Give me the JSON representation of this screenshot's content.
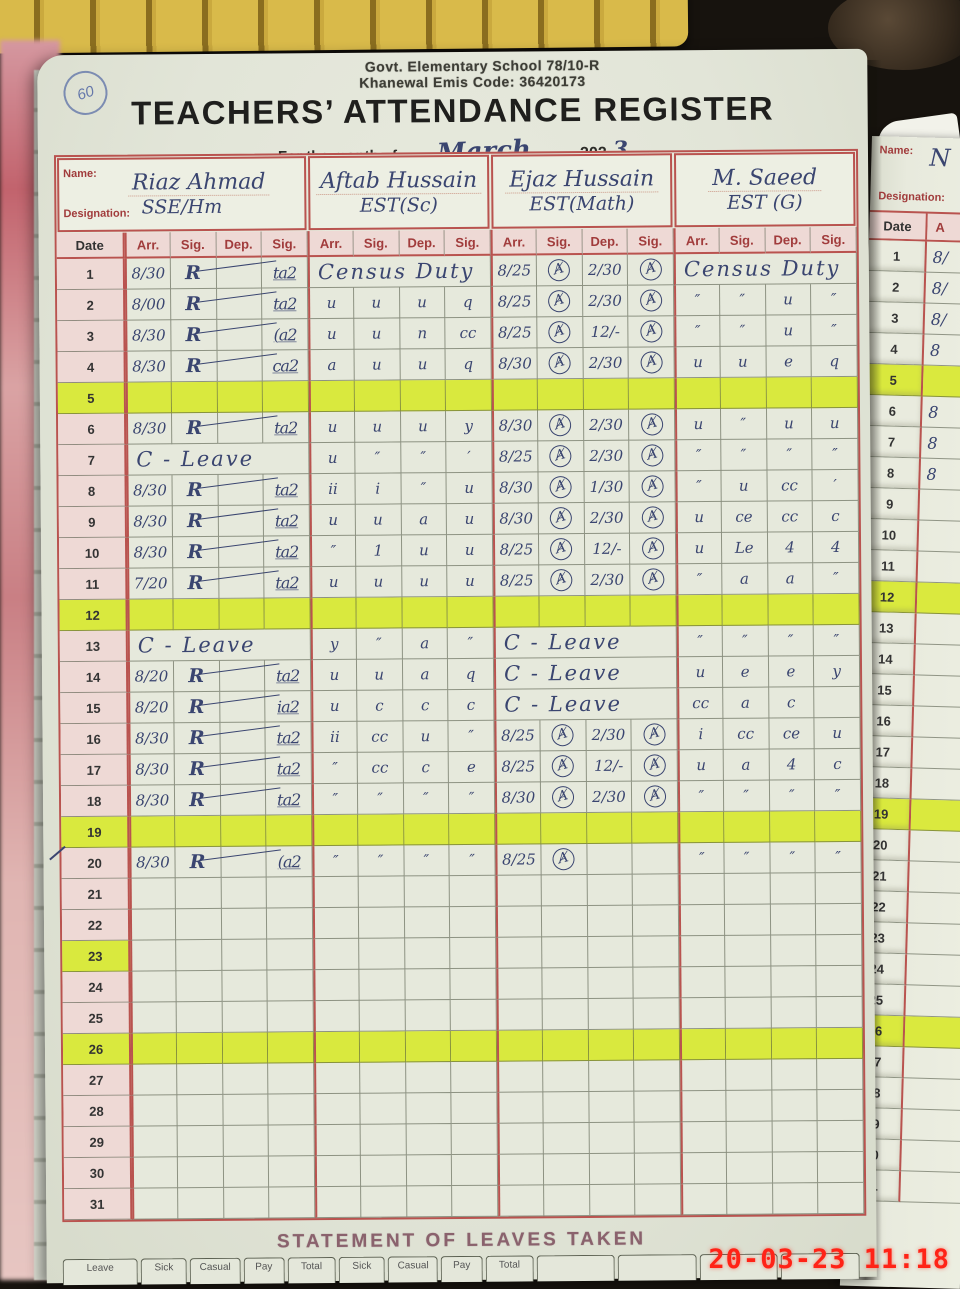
{
  "photo": {
    "timestamp": "20-03-23 11:18"
  },
  "page": {
    "stamp": "60",
    "school_line1": "Govt. Elementary School 78/10-R",
    "school_line2": "Khanewal Emis Code: 36420173",
    "title": "TEACHERS’ ATTENDANCE REGISTER",
    "month_prefix": "For the month of",
    "month_value": "March",
    "year_suffix": ", 202",
    "year_hand": "3",
    "name_label": "Name:",
    "designation_label": "Designation:",
    "footer_title": "STATEMENT OF LEAVES TAKEN",
    "leaves_cols": [
      "Leave",
      "Sick",
      "Casual",
      "Pay",
      "Total",
      "Sick",
      "Casual",
      "Pay",
      "Total",
      "",
      "",
      "",
      ""
    ]
  },
  "columns": {
    "date": "Date",
    "sub": [
      "Arr.",
      "Sig.",
      "Dep.",
      "Sig."
    ]
  },
  "teachers": [
    {
      "name": "Riaz Ahmad",
      "designation": "SSE/Hm"
    },
    {
      "name": "Aftab Hussain",
      "designation": "EST(Sc)"
    },
    {
      "name": "Ejaz Hussain",
      "designation": "EST(Math)"
    },
    {
      "name": "M. Saeed",
      "designation": "EST (G)"
    }
  ],
  "rows": [
    {
      "d": 1,
      "t1": [
        "8/30",
        "R",
        "",
        "ta2"
      ],
      "t2": "Census Duty",
      "t3": [
        "8/25",
        "Ⱥ",
        "2/30",
        "Ⱥ"
      ],
      "t4": "Census Duty"
    },
    {
      "d": 2,
      "t1": [
        "8/00",
        "R",
        "",
        "ta2"
      ],
      "t2": [
        "u",
        "u",
        "u",
        "q"
      ],
      "t3": [
        "8/25",
        "Ⱥ",
        "2/30",
        "Ⱥ"
      ],
      "t4": [
        "″",
        "″",
        "u",
        "″"
      ]
    },
    {
      "d": 3,
      "t1": [
        "8/30",
        "R",
        "",
        "(a2"
      ],
      "t2": [
        "u",
        "u",
        "n",
        "cc"
      ],
      "t3": [
        "8/25",
        "Ⱥ",
        "12/-",
        "Ⱥ"
      ],
      "t4": [
        "″",
        "″",
        "u",
        "″"
      ]
    },
    {
      "d": 4,
      "t1": [
        "8/30",
        "R",
        "",
        "ca2"
      ],
      "t2": [
        "a",
        "u",
        "u",
        "q"
      ],
      "t3": [
        "8/30",
        "Ⱥ",
        "2/30",
        "Ⱥ"
      ],
      "t4": [
        "u",
        "u",
        "e",
        "q"
      ]
    },
    {
      "d": 5,
      "hl": true
    },
    {
      "d": 6,
      "t1": [
        "8/30",
        "R",
        "",
        "ta2"
      ],
      "t2": [
        "u",
        "u",
        "u",
        "y"
      ],
      "t3": [
        "8/30",
        "Ⱥ",
        "2/30",
        "Ⱥ"
      ],
      "t4": [
        "u",
        "″",
        "u",
        "u"
      ]
    },
    {
      "d": 7,
      "t1": "C - Leave",
      "t2": [
        "u",
        "″",
        "″",
        "′"
      ],
      "t3": [
        "8/25",
        "Ⱥ",
        "2/30",
        "Ⱥ"
      ],
      "t4": [
        "″",
        "″",
        "″",
        "″"
      ]
    },
    {
      "d": 8,
      "t1": [
        "8/30",
        "R",
        "",
        "ta2"
      ],
      "t2": [
        "ii",
        "i",
        "″",
        "u"
      ],
      "t3": [
        "8/30",
        "Ⱥ",
        "1/30",
        "Ⱥ"
      ],
      "t4": [
        "″",
        "u",
        "cc",
        "′"
      ]
    },
    {
      "d": 9,
      "t1": [
        "8/30",
        "R",
        "",
        "ta2"
      ],
      "t2": [
        "u",
        "u",
        "a",
        "u"
      ],
      "t3": [
        "8/30",
        "Ⱥ",
        "2/30",
        "Ⱥ"
      ],
      "t4": [
        "u",
        "ce",
        "cc",
        "c"
      ]
    },
    {
      "d": 10,
      "t1": [
        "8/30",
        "R",
        "",
        "ta2"
      ],
      "t2": [
        "″",
        "1",
        "u",
        "u"
      ],
      "t3": [
        "8/25",
        "Ⱥ",
        "12/-",
        "Ⱥ"
      ],
      "t4": [
        "u",
        "Le",
        "4",
        "4"
      ]
    },
    {
      "d": 11,
      "t1": [
        "7/20",
        "R",
        "",
        "ta2"
      ],
      "t2": [
        "u",
        "u",
        "u",
        "u"
      ],
      "t3": [
        "8/25",
        "Ⱥ",
        "2/30",
        "Ⱥ"
      ],
      "t4": [
        "″",
        "a",
        "a",
        "″"
      ]
    },
    {
      "d": 12,
      "hl": true
    },
    {
      "d": 13,
      "t1": "C - Leave",
      "t2": [
        "y",
        "″",
        "a",
        "″"
      ],
      "t3": "C - Leave",
      "t4": [
        "″",
        "″",
        "″",
        "″"
      ]
    },
    {
      "d": 14,
      "t1": [
        "8/20",
        "R",
        "",
        "ta2"
      ],
      "t2": [
        "u",
        "u",
        "a",
        "q"
      ],
      "t3": "C - Leave",
      "t4": [
        "u",
        "e",
        "e",
        "y"
      ]
    },
    {
      "d": 15,
      "t1": [
        "8/20",
        "R",
        "",
        "ia2"
      ],
      "t2": [
        "u",
        "c",
        "c",
        "c"
      ],
      "t3": "C - Leave",
      "t4": [
        "cc",
        "a",
        "c",
        ""
      ]
    },
    {
      "d": 16,
      "t1": [
        "8/30",
        "R",
        "",
        "ta2"
      ],
      "t2": [
        "ii",
        "cc",
        "u",
        "″"
      ],
      "t3": [
        "8/25",
        "Ⱥ",
        "2/30",
        "Ⱥ"
      ],
      "t4": [
        "i",
        "cc",
        "ce",
        "u"
      ]
    },
    {
      "d": 17,
      "t1": [
        "8/30",
        "R",
        "",
        "ta2"
      ],
      "t2": [
        "″",
        "cc",
        "c",
        "e"
      ],
      "t3": [
        "8/25",
        "Ⱥ",
        "12/-",
        "Ⱥ"
      ],
      "t4": [
        "u",
        "a",
        "4",
        "c"
      ]
    },
    {
      "d": 18,
      "t1": [
        "8/30",
        "R",
        "",
        "ta2"
      ],
      "t2": [
        "″",
        "″",
        "″",
        "″"
      ],
      "t3": [
        "8/30",
        "Ⱥ",
        "2/30",
        "Ⱥ"
      ],
      "t4": [
        "″",
        "″",
        "″",
        "″"
      ]
    },
    {
      "d": 19,
      "hl": true
    },
    {
      "d": 20,
      "tick": true,
      "t1": [
        "8/30",
        "R",
        "",
        "(a2"
      ],
      "t2": [
        "″",
        "″",
        "″",
        "″"
      ],
      "t3": [
        "8/25",
        "Ⱥ",
        "",
        ""
      ],
      "t4": [
        "″",
        "″",
        "″",
        "″"
      ]
    },
    {
      "d": 21
    },
    {
      "d": 22
    },
    {
      "d": 23,
      "date_hl": true
    },
    {
      "d": 24
    },
    {
      "d": 25
    },
    {
      "d": 26,
      "hl": true
    },
    {
      "d": 27
    },
    {
      "d": 28
    },
    {
      "d": 29
    },
    {
      "d": 30
    },
    {
      "d": 31
    }
  ],
  "right_page": {
    "name_label": "Name:",
    "name_value": "N",
    "designation_label": "Designation:",
    "date_label": "Date",
    "arr_label": "A",
    "entries": {
      "1": "8/",
      "2": "8/",
      "3": "8/",
      "4": "8",
      "6": "8",
      "7": "8",
      "8": "8"
    },
    "hl_rows": [
      5,
      12,
      19,
      26
    ]
  }
}
